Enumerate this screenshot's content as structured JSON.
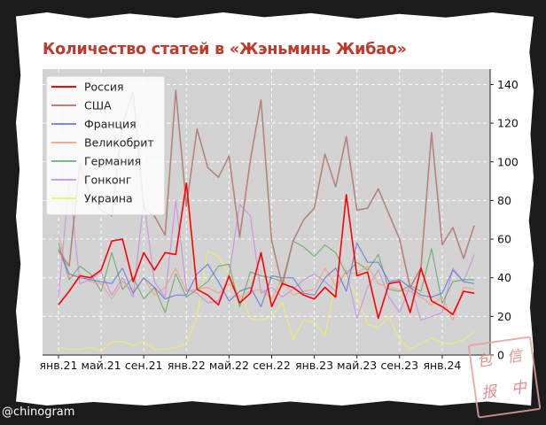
{
  "title": "Количество статей в «Жэньминь Жибао»",
  "watermark": "@chinogram",
  "stamp": {
    "glyphs": [
      "包",
      "信",
      "报",
      "中"
    ]
  },
  "colors": {
    "page_bg": "#1b1b1b",
    "poster_bg": "#ffffff",
    "plot_bg": "#d3d3d3",
    "grid": "#ffffff",
    "title": "#c0392b"
  },
  "chart_data": {
    "type": "line",
    "title": "Количество статей в «Жэньминь Жибао»",
    "xlabel": "",
    "ylabel": "",
    "y_axis_side": "right",
    "ylim": [
      0,
      148
    ],
    "y_ticks": [
      0,
      20,
      40,
      60,
      80,
      100,
      120,
      140
    ],
    "grid": true,
    "legend_position": "top-left",
    "x": [
      "2021-01",
      "2021-02",
      "2021-03",
      "2021-04",
      "2021-05",
      "2021-06",
      "2021-07",
      "2021-08",
      "2021-09",
      "2021-10",
      "2021-11",
      "2021-12",
      "2022-01",
      "2022-02",
      "2022-03",
      "2022-04",
      "2022-05",
      "2022-06",
      "2022-07",
      "2022-08",
      "2022-09",
      "2022-10",
      "2022-11",
      "2022-12",
      "2023-01",
      "2023-02",
      "2023-03",
      "2023-04",
      "2023-05",
      "2023-06",
      "2023-07",
      "2023-08",
      "2023-09",
      "2023-10",
      "2023-11",
      "2023-12",
      "2024-01",
      "2024-02",
      "2024-03",
      "2024-04"
    ],
    "x_ticks": [
      "2021-01",
      "2021-05",
      "2021-09",
      "2022-01",
      "2022-05",
      "2022-09",
      "2023-01",
      "2023-05",
      "2023-09",
      "2024-01"
    ],
    "x_tick_labels": [
      "янв.21",
      "май.21",
      "сен.21",
      "янв.22",
      "май.22",
      "сен.22",
      "янв.23",
      "май.23",
      "сен.23",
      "янв.24"
    ],
    "series": [
      {
        "name": "Россия",
        "color": "#ff0000",
        "width": 1.6,
        "opacity": 1.0,
        "values": [
          26,
          33,
          41,
          40,
          44,
          59,
          60,
          38,
          53,
          44,
          53,
          52,
          89,
          34,
          31,
          26,
          41,
          27,
          32,
          53,
          25,
          37,
          35,
          31,
          29,
          35,
          30,
          83,
          41,
          43,
          19,
          37,
          38,
          22,
          45,
          28,
          25,
          21,
          33,
          32
        ]
      },
      {
        "name": "США",
        "color": "#b5837c",
        "width": 1.6,
        "opacity": 1.0,
        "values": [
          54,
          46,
          99,
          82,
          75,
          72,
          120,
          136,
          76,
          72,
          62,
          137,
          77,
          117,
          97,
          92,
          103,
          61,
          101,
          132,
          59,
          36,
          59,
          70,
          76,
          104,
          87,
          113,
          75,
          76,
          86,
          73,
          60,
          35,
          45,
          115,
          57,
          66,
          50,
          67
        ]
      },
      {
        "name": "Франция",
        "color": "#6677dd",
        "width": 1.2,
        "opacity": 0.85,
        "values": [
          55,
          42,
          40,
          39,
          38,
          37,
          45,
          32,
          40,
          35,
          29,
          31,
          31,
          42,
          47,
          38,
          28,
          33,
          35,
          25,
          41,
          40,
          40,
          32,
          31,
          40,
          45,
          33,
          58,
          48,
          48,
          38,
          39,
          35,
          31,
          30,
          32,
          44,
          38,
          37
        ]
      },
      {
        "name": "Великобрит",
        "color": "#f0a080",
        "width": 1.2,
        "opacity": 0.85,
        "values": [
          62,
          40,
          42,
          38,
          37,
          29,
          38,
          33,
          40,
          31,
          35,
          45,
          33,
          34,
          35,
          32,
          37,
          30,
          33,
          34,
          29,
          40,
          31,
          33,
          34,
          45,
          36,
          43,
          42,
          46,
          37,
          35,
          34,
          33,
          30,
          26,
          30,
          18,
          35,
          34
        ]
      },
      {
        "name": "Германия",
        "color": "#66aa66",
        "width": 1.2,
        "opacity": 0.85,
        "values": [
          58,
          39,
          46,
          42,
          33,
          53,
          34,
          40,
          29,
          35,
          22,
          42,
          30,
          34,
          38,
          46,
          47,
          25,
          43,
          41,
          40,
          38,
          59,
          56,
          51,
          57,
          53,
          42,
          48,
          44,
          52,
          34,
          33,
          36,
          33,
          55,
          27,
          38,
          39,
          39
        ]
      },
      {
        "name": "Гонконг",
        "color": "#c88ee0",
        "width": 1.2,
        "opacity": 0.85,
        "values": [
          30,
          90,
          37,
          39,
          43,
          31,
          40,
          30,
          80,
          38,
          30,
          80,
          34,
          32,
          27,
          28,
          41,
          78,
          72,
          32,
          35,
          30,
          34,
          39,
          42,
          38,
          33,
          44,
          19,
          35,
          44,
          30,
          22,
          36,
          18,
          20,
          22,
          45,
          38,
          52
        ]
      },
      {
        "name": "Украина",
        "color": "#f0ec70",
        "width": 1.2,
        "opacity": 0.9,
        "values": [
          4,
          3,
          3,
          4,
          2,
          7,
          7,
          5,
          7,
          3,
          3,
          4,
          6,
          20,
          54,
          51,
          42,
          33,
          19,
          18,
          20,
          27,
          8,
          18,
          17,
          10,
          38,
          40,
          30,
          16,
          14,
          20,
          8,
          3,
          6,
          9,
          6,
          6,
          8,
          12
        ]
      }
    ]
  }
}
